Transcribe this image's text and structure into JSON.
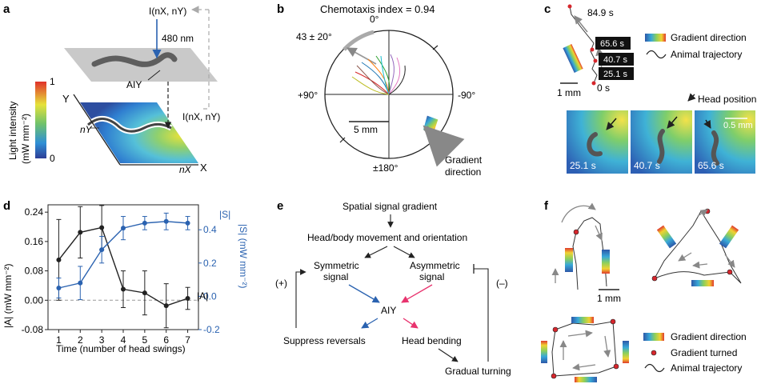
{
  "panels": {
    "a": {
      "label": "a",
      "light_formula_top": "I(nX, nY)",
      "light_formula_side": "I(nX, nY)",
      "wavelength": "480 nm",
      "neuron": "AIY",
      "axis_y": "Y",
      "axis_x": "X",
      "n_y": "nY",
      "n_x": "nX",
      "colorbar_title": "Light intensity",
      "colorbar_unit": "(mW mm⁻²)",
      "colorbar_max": "1",
      "colorbar_min": "0"
    },
    "b": {
      "label": "b",
      "title": "Chemotaxis index = 0.94",
      "angle_top": "0°",
      "angle_left": "+90°",
      "angle_right": "-90°",
      "angle_bottom": "±180°",
      "arc_label": "43 ± 20°",
      "scale": "5 mm",
      "gradient_label_1": "Gradient",
      "gradient_label_2": "direction"
    },
    "c": {
      "label": "c",
      "time_top": "84.9 s",
      "times": [
        "65.6 s",
        "40.7 s",
        "25.1 s"
      ],
      "time_zero": "0 s",
      "scale": "1 mm",
      "legend_gradient": "Gradient direction",
      "legend_trajectory": "Animal trajectory",
      "head_label": "Head position",
      "inset_scale": "0.5 mm",
      "inset_times": [
        "25.1 s",
        "40.7 s",
        "65.6 s"
      ]
    },
    "d": {
      "label": "d",
      "legend_S": "|S|",
      "legend_A": "|A|",
      "ylabel_left": "|A| (mW mm⁻²)",
      "ylabel_right": "|S| (mW mm⁻²)",
      "xlabel": "Time (number of head swings)"
    },
    "e": {
      "label": "e",
      "n1": "Spatial signal gradient",
      "n2": "Head/body movement and orientation",
      "n3a": "Symmetric",
      "n3b": "signal",
      "n4a": "Asymmetric",
      "n4b": "signal",
      "n5": "AIY",
      "n6": "Suppress reversals",
      "n7": "Head bending",
      "n8": "Gradual turning",
      "plus": "(+)",
      "minus": "(–)"
    },
    "f": {
      "label": "f",
      "scale": "1 mm",
      "legend_gradient": "Gradient direction",
      "legend_turned": "Gradient turned",
      "legend_trajectory": "Animal trajectory"
    }
  },
  "chart_data": {
    "type": "line",
    "x": [
      1,
      2,
      3,
      4,
      5,
      6,
      7
    ],
    "xlabel": "Time (number of head swings)",
    "ylabel": "|A| (mW mm⁻²)",
    "ylabel_right": "|S| (mW mm⁻²)",
    "ylim": [
      -0.08,
      0.26
    ],
    "ylim_right": [
      -0.2,
      0.55
    ],
    "yticks": [
      -0.08,
      0.0,
      0.08,
      0.16,
      0.24
    ],
    "yticks_right": [
      -0.2,
      0.0,
      0.2,
      0.4
    ],
    "ytick_labels": [
      "-0.08",
      "0.00",
      "0.08",
      "0.16",
      "0.24"
    ],
    "ytick_labels_right": [
      "-0.2",
      "0.0",
      "0.2",
      "0.4"
    ],
    "xtick_labels": [
      "1",
      "2",
      "3",
      "4",
      "5",
      "6",
      "7"
    ],
    "series": [
      {
        "name": "|A|",
        "axis": "left",
        "color": "#222222",
        "values": [
          0.11,
          0.185,
          0.198,
          0.03,
          0.02,
          -0.015,
          0.005
        ],
        "errors": [
          0.11,
          0.07,
          0.06,
          0.05,
          0.06,
          0.06,
          0.03
        ]
      },
      {
        "name": "|S|",
        "axis": "right",
        "color": "#2a62b0",
        "values": [
          0.05,
          0.08,
          0.28,
          0.41,
          0.44,
          0.45,
          0.44
        ],
        "errors": [
          0.06,
          0.1,
          0.08,
          0.07,
          0.04,
          0.05,
          0.04
        ]
      }
    ],
    "grid": false,
    "zero_line": "dashed"
  }
}
